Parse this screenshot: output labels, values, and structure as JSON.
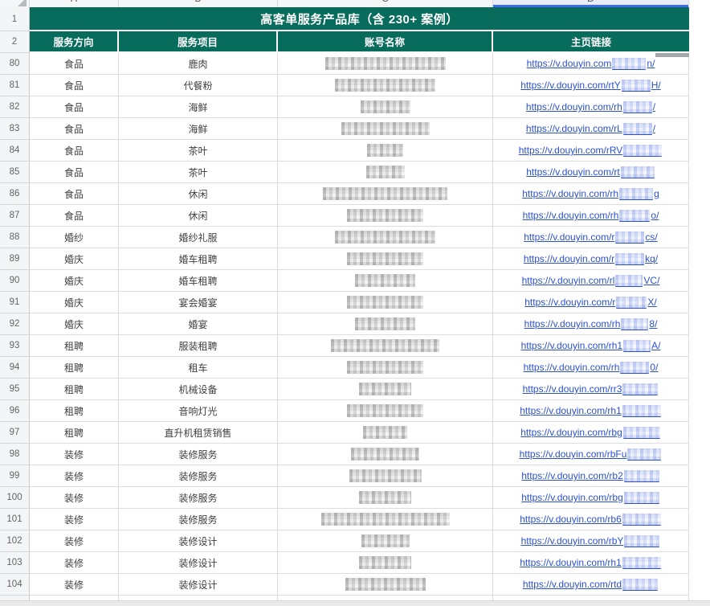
{
  "colors": {
    "header_green": "#086C5D",
    "link_blue": "#2B50D0",
    "selection_blue": "#3E6BE6",
    "selection_bg": "#E9EDF9"
  },
  "topstrip": {
    "column_letters": [
      "A",
      "B",
      "C",
      "D"
    ]
  },
  "table": {
    "title": "高客单服务产品库（含 230+ 案例）",
    "title_row_number": "1",
    "header_row_number": "2",
    "columns": [
      "服务方向",
      "服务项目",
      "账号名称",
      "主页链接"
    ],
    "rows": [
      {
        "n": "80",
        "direction": "食品",
        "item": "鹿肉",
        "account_masked_width": 150,
        "link_prefix": "https://v.douyin.com",
        "link_masked_width": 42,
        "link_tail": "n/"
      },
      {
        "n": "81",
        "direction": "食品",
        "item": "代餐粉",
        "account_masked_width": 125,
        "link_prefix": "https://v.douyin.com/rtY",
        "link_masked_width": 36,
        "link_tail": "H/"
      },
      {
        "n": "82",
        "direction": "食品",
        "item": "海鲜",
        "account_masked_width": 62,
        "link_prefix": "https://v.douyin.com/rh",
        "link_masked_width": 36,
        "link_tail": "/"
      },
      {
        "n": "83",
        "direction": "食品",
        "item": "海鲜",
        "account_masked_width": 110,
        "link_prefix": "https://v.douyin.com/rL",
        "link_masked_width": 36,
        "link_tail": "/"
      },
      {
        "n": "84",
        "direction": "食品",
        "item": "茶叶",
        "account_masked_width": 45,
        "link_prefix": "https://v.douyin.com/rRV",
        "link_masked_width": 48,
        "link_tail": ""
      },
      {
        "n": "85",
        "direction": "食品",
        "item": "茶叶",
        "account_masked_width": 48,
        "link_prefix": "https://v.douyin.com/rt",
        "link_masked_width": 42,
        "link_tail": ""
      },
      {
        "n": "86",
        "direction": "食品",
        "item": "休闲",
        "account_masked_width": 155,
        "link_prefix": "https://v.douyin.com/rh",
        "link_masked_width": 42,
        "link_tail": "g"
      },
      {
        "n": "87",
        "direction": "食品",
        "item": "休闲",
        "account_masked_width": 95,
        "link_prefix": "https://v.douyin.com/rh",
        "link_masked_width": 38,
        "link_tail": "o/"
      },
      {
        "n": "88",
        "direction": "婚纱",
        "item": "婚纱礼服",
        "account_masked_width": 125,
        "link_prefix": "https://v.douyin.com/r",
        "link_masked_width": 36,
        "link_tail": "cs/"
      },
      {
        "n": "89",
        "direction": "婚庆",
        "item": "婚车租聘",
        "account_masked_width": 95,
        "link_prefix": "https://v.douyin.com/r",
        "link_masked_width": 36,
        "link_tail": "kq/"
      },
      {
        "n": "90",
        "direction": "婚庆",
        "item": "婚车租聘",
        "account_masked_width": 75,
        "link_prefix": "https://v.douyin.com/rl",
        "link_masked_width": 34,
        "link_tail": "VC/"
      },
      {
        "n": "91",
        "direction": "婚庆",
        "item": "宴会婚宴",
        "account_masked_width": 95,
        "link_prefix": "https://v.douyin.com/r",
        "link_masked_width": 38,
        "link_tail": "X/"
      },
      {
        "n": "92",
        "direction": "婚庆",
        "item": "婚宴",
        "account_masked_width": 75,
        "link_prefix": "https://v.douyin.com/rh",
        "link_masked_width": 34,
        "link_tail": "8/"
      },
      {
        "n": "93",
        "direction": "租聘",
        "item": "服装租聘",
        "account_masked_width": 135,
        "link_prefix": "https://v.douyin.com/rh1",
        "link_masked_width": 34,
        "link_tail": "A/"
      },
      {
        "n": "94",
        "direction": "租聘",
        "item": "租车",
        "account_masked_width": 95,
        "link_prefix": "https://v.douyin.com/rh",
        "link_masked_width": 36,
        "link_tail": "0/"
      },
      {
        "n": "95",
        "direction": "租聘",
        "item": "机械设备",
        "account_masked_width": 65,
        "link_prefix": "https://v.douyin.com/rr3",
        "link_masked_width": 44,
        "link_tail": ""
      },
      {
        "n": "96",
        "direction": "租聘",
        "item": "音响灯光",
        "account_masked_width": 95,
        "link_prefix": "https://v.douyin.com/rh1",
        "link_masked_width": 48,
        "link_tail": ""
      },
      {
        "n": "97",
        "direction": "租聘",
        "item": "直升机租赁销售",
        "account_masked_width": 55,
        "link_prefix": "https://v.douyin.com/rbg",
        "link_masked_width": 46,
        "link_tail": ""
      },
      {
        "n": "98",
        "direction": "装修",
        "item": "装修服务",
        "account_masked_width": 85,
        "link_prefix": "https://v.douyin.com/rbFu",
        "link_masked_width": 42,
        "link_tail": ""
      },
      {
        "n": "99",
        "direction": "装修",
        "item": "装修服务",
        "account_masked_width": 90,
        "link_prefix": "https://v.douyin.com/rb2",
        "link_masked_width": 44,
        "link_tail": ""
      },
      {
        "n": "100",
        "direction": "装修",
        "item": "装修服务",
        "account_masked_width": 65,
        "link_prefix": "https://v.douyin.com/rbg",
        "link_masked_width": 44,
        "link_tail": ""
      },
      {
        "n": "101",
        "direction": "装修",
        "item": "装修服务",
        "account_masked_width": 160,
        "link_prefix": "https://v.douyin.com/rb6",
        "link_masked_width": 48,
        "link_tail": ""
      },
      {
        "n": "102",
        "direction": "装修",
        "item": "装修设计",
        "account_masked_width": 60,
        "link_prefix": "https://v.douyin.com/rbY",
        "link_masked_width": 44,
        "link_tail": ""
      },
      {
        "n": "103",
        "direction": "装修",
        "item": "装修设计",
        "account_masked_width": 65,
        "link_prefix": "https://v.douyin.com/rh1",
        "link_masked_width": 48,
        "link_tail": ""
      },
      {
        "n": "104",
        "direction": "装修",
        "item": "装修设计",
        "account_masked_width": 100,
        "link_prefix": "https://v.douyin.com/rtd",
        "link_masked_width": 44,
        "link_tail": ""
      }
    ]
  }
}
